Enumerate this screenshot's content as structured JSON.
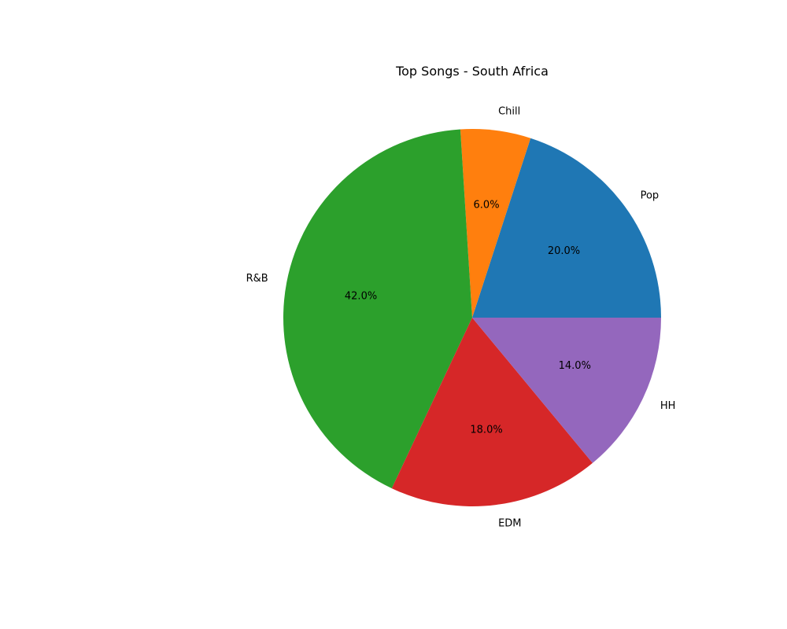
{
  "chart_data": {
    "type": "pie",
    "title": "Top Songs - South Africa",
    "categories": [
      "Pop",
      "Chill",
      "R&B",
      "EDM",
      "HH"
    ],
    "values": [
      20.0,
      6.0,
      42.0,
      18.0,
      14.0
    ],
    "percent_labels": [
      "20.0%",
      "6.0%",
      "42.0%",
      "18.0%",
      "14.0%"
    ],
    "colors": [
      "#1f77b4",
      "#ff7f0e",
      "#2ca02c",
      "#d62728",
      "#9467bd"
    ],
    "start_angle_deg": 0,
    "direction": "counterclockwise",
    "legend": "none"
  }
}
